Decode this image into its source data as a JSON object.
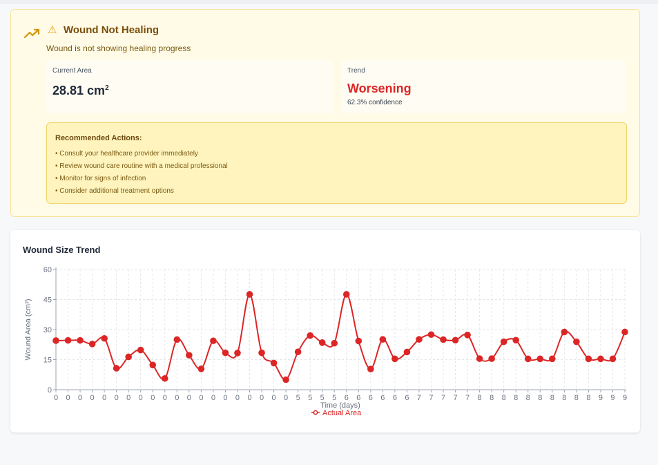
{
  "alert": {
    "title": "Wound Not Healing",
    "subtitle": "Wound is not showing healing progress",
    "current_area_label": "Current Area",
    "current_area_value": "28.81 cm",
    "current_area_unit_sup": "2",
    "trend_label": "Trend",
    "trend_value": "Worsening",
    "trend_confidence": "62.3% confidence",
    "recommended_title": "Recommended Actions:",
    "recommended": [
      "• Consult your healthcare provider immediately",
      "• Review wound care routine with a medical professional",
      "• Monitor for signs of infection",
      "• Consider additional treatment options"
    ],
    "accent_color": "#dc2626",
    "icons": [
      "trending-up-icon",
      "warning-icon"
    ]
  },
  "chart_card": {
    "title": "Wound Size Trend"
  },
  "chart_data": {
    "type": "line",
    "title": "Wound Size Trend",
    "xlabel": "Time (days)",
    "ylabel": "Wound Area (cm²)",
    "ylim": [
      0,
      60
    ],
    "yticks": [
      0,
      15,
      30,
      45,
      60
    ],
    "grid": true,
    "legend_placement": "bottom",
    "x": [
      "0",
      "0",
      "0",
      "0",
      "0",
      "0",
      "0",
      "0",
      "0",
      "0",
      "0",
      "0",
      "0",
      "0",
      "0",
      "0",
      "0",
      "0",
      "0",
      "0",
      "5",
      "5",
      "5",
      "5",
      "6",
      "6",
      "6",
      "6",
      "6",
      "6",
      "7",
      "7",
      "7",
      "7",
      "7",
      "8",
      "8",
      "8",
      "8",
      "8",
      "8",
      "8",
      "8",
      "8",
      "8",
      "9",
      "9",
      "9"
    ],
    "series": [
      {
        "name": "Actual Area",
        "color": "#dc2626",
        "values": [
          24.5,
          24.6,
          24.6,
          22.8,
          25.6,
          10.7,
          16.4,
          19.8,
          12.3,
          5.6,
          25.0,
          17.2,
          10.4,
          24.4,
          18.4,
          18.3,
          47.6,
          18.4,
          13.3,
          5.0,
          18.9,
          27.0,
          23.5,
          23.2,
          47.6,
          24.3,
          10.3,
          25.1,
          15.4,
          18.8,
          25.1,
          27.5,
          25.0,
          24.7,
          27.3,
          15.5,
          15.5,
          23.9,
          24.7,
          15.4,
          15.4,
          15.4,
          28.8,
          23.9,
          15.4,
          15.4,
          15.4,
          28.8
        ]
      }
    ]
  }
}
